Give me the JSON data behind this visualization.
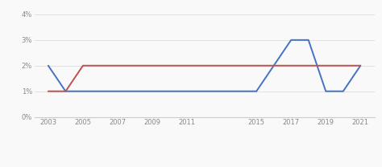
{
  "school_x": [
    2003,
    2004,
    2005,
    2015,
    2017,
    2018,
    2019,
    2020,
    2021
  ],
  "school_y": [
    2,
    1,
    1,
    1,
    3,
    3,
    1,
    1,
    2
  ],
  "state_x": [
    2003,
    2004,
    2005,
    2015,
    2017,
    2018,
    2019,
    2020,
    2021
  ],
  "state_y": [
    1,
    1,
    2,
    2,
    2,
    2,
    2,
    2,
    2
  ],
  "school_color": "#4472c4",
  "state_color": "#c0504d",
  "xticks": [
    2003,
    2005,
    2007,
    2009,
    2011,
    2015,
    2017,
    2019,
    2021
  ],
  "yticks": [
    0,
    1,
    2,
    3,
    4
  ],
  "ytick_labels": [
    "0%",
    "1%",
    "2%",
    "3%",
    "4%"
  ],
  "xlim": [
    2002.2,
    2021.8
  ],
  "ylim": [
    0,
    4.3
  ],
  "background_color": "#f9f9f9",
  "grid_color": "#e0e0e0",
  "line_width": 1.4
}
